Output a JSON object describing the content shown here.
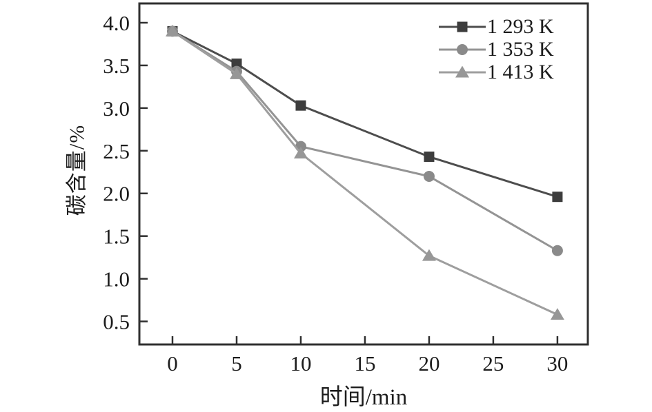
{
  "figure": {
    "background": "#ffffff",
    "frame_color": "#2f2f2f",
    "text_color": "#1c1c1c"
  },
  "chart_data": {
    "type": "line",
    "title": "",
    "xlabel": "时间/min",
    "ylabel": "碳含量/%",
    "x": [
      0,
      5,
      10,
      20,
      30
    ],
    "series": [
      {
        "name": "1 293 K",
        "marker": "square",
        "color": "#4d4d4d",
        "marker_color": "#3d3d3d",
        "values": [
          3.9,
          3.52,
          3.03,
          2.43,
          1.96
        ]
      },
      {
        "name": "1 353 K",
        "marker": "circle",
        "color": "#949494",
        "marker_color": "#8a8a8a",
        "values": [
          3.9,
          3.43,
          2.55,
          2.2,
          1.33
        ]
      },
      {
        "name": "1 413 K",
        "marker": "triangle",
        "color": "#9e9e9e",
        "marker_color": "#979797",
        "values": [
          3.9,
          3.4,
          2.47,
          1.27,
          0.58
        ]
      }
    ],
    "xticks": [
      0,
      5,
      10,
      15,
      20,
      25,
      30
    ],
    "yticks": [
      4.0,
      3.5,
      3.0,
      2.5,
      2.0,
      1.5,
      1.0,
      0.5
    ],
    "xlim": [
      -2.58,
      32.37
    ],
    "ylim": [
      0.23,
      4.226
    ],
    "grid": false,
    "legend_position": "top-right"
  }
}
